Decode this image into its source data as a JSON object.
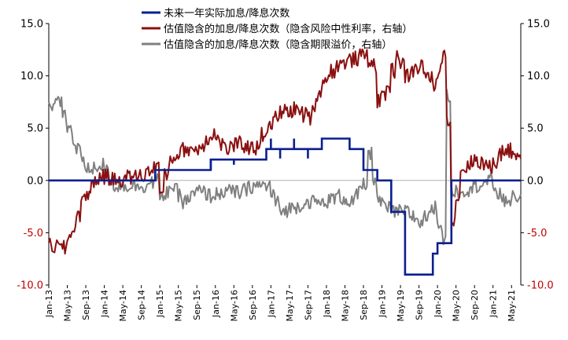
{
  "chart_data": {
    "type": "line",
    "title": "",
    "colors": {
      "actual": "#0a1f8f",
      "implied_risk_free": "#8b1010",
      "implied_term_spread": "#808080",
      "zero_line": "#b0b0b0",
      "axis": "#000000"
    },
    "legend_position": "top-center",
    "grid": false,
    "left_axis": {
      "ylim": [
        -10,
        15
      ],
      "ticks": [
        15,
        10,
        5,
        0,
        -5,
        -10
      ],
      "tick_labels": [
        "15.0",
        "10.0",
        "5.0",
        "0.0",
        "-5.0",
        "-10.0"
      ]
    },
    "right_axis": {
      "ylim": [
        -10,
        15
      ],
      "ticks": [
        15,
        10,
        5,
        0,
        -5,
        -10
      ],
      "tick_labels": [
        "15.0",
        "10.0",
        "5.0",
        "0.0",
        "-5.0",
        "-10.0"
      ]
    },
    "x_axis": {
      "range": [
        "2013-01",
        "2021-07"
      ],
      "tick_labels": [
        "Jan-13",
        "May-13",
        "Sep-13",
        "Jan-14",
        "May-14",
        "Sep-14",
        "Jan-15",
        "May-15",
        "Sep-15",
        "Jan-16",
        "May-16",
        "Sep-16",
        "Jan-17",
        "May-17",
        "Sep-17",
        "Jan-18",
        "May-18",
        "Sep-18",
        "Jan-19",
        "May-19",
        "Sep-19",
        "Jan-20",
        "May-20",
        "Sep-20",
        "Jan-21",
        "May-21"
      ],
      "tick_positions": [
        "2013-01",
        "2013-05",
        "2013-09",
        "2014-01",
        "2014-05",
        "2014-09",
        "2015-01",
        "2015-05",
        "2015-09",
        "2016-01",
        "2016-05",
        "2016-09",
        "2017-01",
        "2017-05",
        "2017-09",
        "2018-01",
        "2018-05",
        "2018-09",
        "2019-01",
        "2019-05",
        "2019-09",
        "2020-01",
        "2020-05",
        "2020-09",
        "2021-01",
        "2021-05"
      ]
    },
    "series": [
      {
        "name": "未来一年实际加息/降息次数",
        "key": "actual",
        "axis": "left",
        "shape": "step",
        "x": [
          "2013-01",
          "2014-12",
          "2015-12",
          "2016-12",
          "2017-12",
          "2018-06",
          "2018-09",
          "2018-12",
          "2019-03",
          "2019-06",
          "2019-12",
          "2020-01",
          "2020-04",
          "2021-07"
        ],
        "values": [
          0,
          1,
          2,
          3,
          4,
          3,
          1,
          0,
          -3,
          -9,
          -7,
          -6,
          0,
          0
        ],
        "spikes": [
          {
            "x": "2015-12",
            "values": [
              1,
              2
            ]
          },
          {
            "x": "2016-05",
            "values": [
              2,
              1.5
            ]
          },
          {
            "x": "2017-01",
            "values": [
              3,
              4
            ]
          },
          {
            "x": "2017-03",
            "values": [
              3,
              2.1
            ]
          },
          {
            "x": "2017-06",
            "values": [
              3,
              4
            ]
          },
          {
            "x": "2017-09",
            "values": [
              3,
              2.1
            ]
          }
        ]
      },
      {
        "name": "估值隐含的加息/降息次数（隐含风险中性利率，右轴）",
        "key": "implied_risk_free",
        "axis": "right",
        "x": [
          "2013-01",
          "2013-04",
          "2013-06",
          "2013-08",
          "2013-10",
          "2013-12",
          "2014-03",
          "2014-06",
          "2014-09",
          "2014-12",
          "2015-01",
          "2015-03",
          "2015-06",
          "2015-09",
          "2015-12",
          "2016-03",
          "2016-06",
          "2016-09",
          "2016-12",
          "2017-03",
          "2017-06",
          "2017-09",
          "2017-12",
          "2018-03",
          "2018-06",
          "2018-09",
          "2018-11",
          "2018-12",
          "2019-02",
          "2019-04",
          "2019-06",
          "2019-09",
          "2019-12",
          "2020-02",
          "2020-03",
          "2020-04",
          "2020-06",
          "2020-09",
          "2020-12",
          "2021-03",
          "2021-06",
          "2021-07"
        ],
        "values": [
          -6.2,
          -6.5,
          -4.5,
          -2.0,
          -0.5,
          0.5,
          0.0,
          0.3,
          0.5,
          1.5,
          -1.2,
          2.0,
          3.0,
          3.0,
          4.5,
          3.0,
          3.5,
          3.0,
          5.0,
          6.5,
          6.8,
          6.0,
          9.5,
          11.0,
          11.5,
          12.0,
          11.0,
          7.5,
          9.0,
          12.0,
          10.0,
          11.0,
          9.0,
          12.0,
          6.0,
          -4.0,
          1.0,
          2.0,
          1.2,
          3.0,
          2.5,
          2.5
        ]
      },
      {
        "name": "估值隐含的加息/降息次数（隐含期限溢价，右轴）",
        "key": "implied_term_spread",
        "axis": "right",
        "x": [
          "2013-01",
          "2013-03",
          "2013-06",
          "2013-09",
          "2013-12",
          "2014-03",
          "2014-06",
          "2014-09",
          "2014-12",
          "2015-01",
          "2015-03",
          "2015-06",
          "2015-09",
          "2015-12",
          "2016-03",
          "2016-06",
          "2016-09",
          "2016-12",
          "2017-03",
          "2017-06",
          "2017-09",
          "2017-12",
          "2018-03",
          "2018-06",
          "2018-09",
          "2018-10",
          "2018-12",
          "2019-03",
          "2019-06",
          "2019-09",
          "2019-12",
          "2020-02",
          "2020-03",
          "2020-04",
          "2020-06",
          "2020-09",
          "2020-12",
          "2021-03",
          "2021-06",
          "2021-07"
        ],
        "values": [
          7.0,
          7.5,
          4.0,
          1.0,
          1.5,
          -0.5,
          -0.5,
          -0.5,
          0.0,
          -1.8,
          -0.5,
          -2.0,
          -1.0,
          -1.5,
          -1.0,
          -1.2,
          -0.5,
          -0.5,
          -3.0,
          -2.5,
          -2.0,
          -2.2,
          -1.5,
          -2.0,
          -0.5,
          2.5,
          -2.0,
          -3.0,
          -3.0,
          -4.0,
          -2.5,
          -5.5,
          8.0,
          -1.0,
          -1.0,
          -0.5,
          0.0,
          -2.0,
          -1.5,
          -2.0
        ]
      }
    ]
  }
}
